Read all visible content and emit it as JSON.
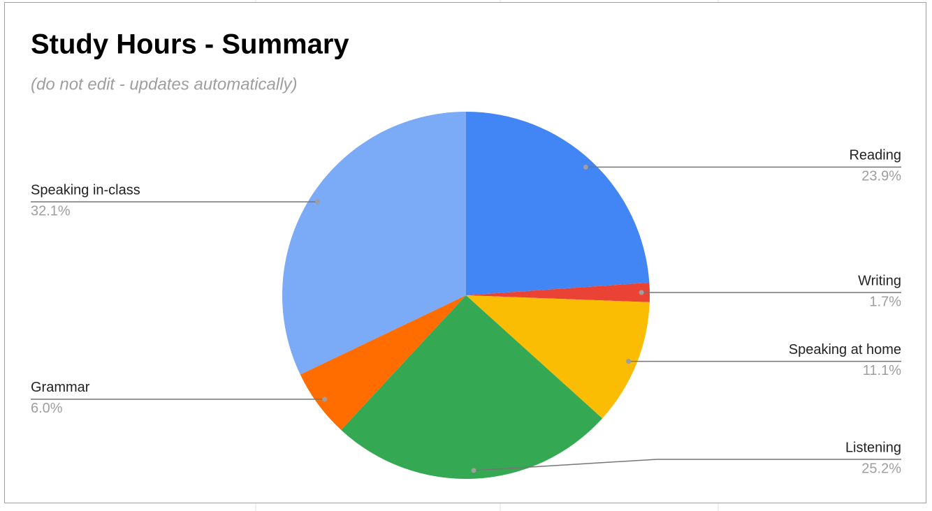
{
  "chart_data": {
    "type": "pie",
    "title": "Study Hours - Summary",
    "subtitle": "(do not edit - updates automatically)",
    "categories": [
      "Reading",
      "Writing",
      "Speaking at home",
      "Listening",
      "Grammar",
      "Speaking in-class"
    ],
    "values": [
      23.9,
      1.7,
      11.1,
      25.2,
      6.0,
      32.1
    ],
    "value_labels": [
      "23.9%",
      "1.7%",
      "11.1%",
      "25.2%",
      "6.0%",
      "32.1%"
    ],
    "colors": [
      "#4285f4",
      "#ea4335",
      "#fbbc04",
      "#34a853",
      "#ff6d01",
      "#7baaf7"
    ]
  }
}
